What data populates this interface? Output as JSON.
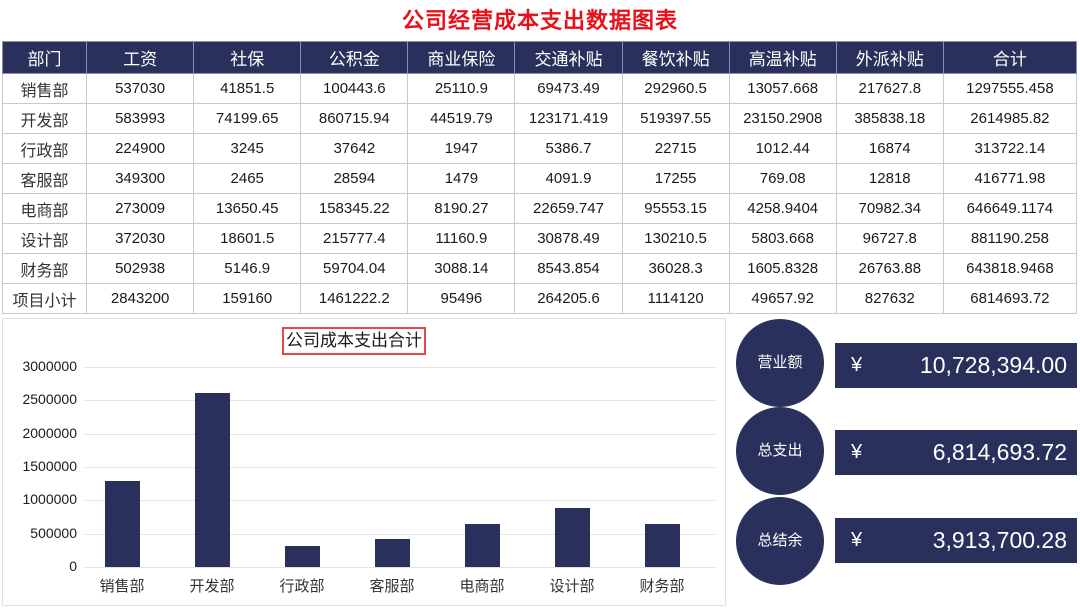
{
  "title": "公司经营成本支出数据图表",
  "table": {
    "headers": [
      "部门",
      "工资",
      "社保",
      "公积金",
      "商业保险",
      "交通补贴",
      "餐饮补贴",
      "高温补贴",
      "外派补贴",
      "合计"
    ],
    "rows": [
      [
        "销售部",
        "537030",
        "41851.5",
        "100443.6",
        "25110.9",
        "69473.49",
        "292960.5",
        "13057.668",
        "217627.8",
        "1297555.458"
      ],
      [
        "开发部",
        "583993",
        "74199.65",
        "860715.94",
        "44519.79",
        "123171.419",
        "519397.55",
        "23150.2908",
        "385838.18",
        "2614985.82"
      ],
      [
        "行政部",
        "224900",
        "3245",
        "37642",
        "1947",
        "5386.7",
        "22715",
        "1012.44",
        "16874",
        "313722.14"
      ],
      [
        "客服部",
        "349300",
        "2465",
        "28594",
        "1479",
        "4091.9",
        "17255",
        "769.08",
        "12818",
        "416771.98"
      ],
      [
        "电商部",
        "273009",
        "13650.45",
        "158345.22",
        "8190.27",
        "22659.747",
        "95553.15",
        "4258.9404",
        "70982.34",
        "646649.1174"
      ],
      [
        "设计部",
        "372030",
        "18601.5",
        "215777.4",
        "11160.9",
        "30878.49",
        "130210.5",
        "5803.668",
        "96727.8",
        "881190.258"
      ],
      [
        "财务部",
        "502938",
        "5146.9",
        "59704.04",
        "3088.14",
        "8543.854",
        "36028.3",
        "1605.8328",
        "26763.88",
        "643818.9468"
      ],
      [
        "项目小计",
        "2843200",
        "159160",
        "1461222.2",
        "95496",
        "264205.6",
        "1114120",
        "49657.92",
        "827632",
        "6814693.72"
      ]
    ]
  },
  "chart_data": {
    "type": "bar",
    "title": "公司成本支出合计",
    "categories": [
      "销售部",
      "开发部",
      "行政部",
      "客服部",
      "电商部",
      "设计部",
      "财务部"
    ],
    "values": [
      1297555.458,
      2614985.82,
      313722.14,
      416771.98,
      646649.1174,
      881190.258,
      643818.9468
    ],
    "yticks": [
      "3000000",
      "2500000",
      "2000000",
      "1500000",
      "1000000",
      "500000",
      "0"
    ],
    "xlabel": "",
    "ylabel": "",
    "ylim": [
      0,
      3000000
    ],
    "grid": true,
    "bar_color": "#2a305c"
  },
  "kpis": [
    {
      "label": "营业额",
      "currency": "¥",
      "value": "10,728,394.00"
    },
    {
      "label": "总支出",
      "currency": "¥",
      "value": "6,814,693.72"
    },
    {
      "label": "总结余",
      "currency": "¥",
      "value": "3,913,700.28"
    }
  ],
  "colors": {
    "title": "#e8111b",
    "primary": "#2a305c",
    "chart_title_border": "#e24a4a"
  }
}
